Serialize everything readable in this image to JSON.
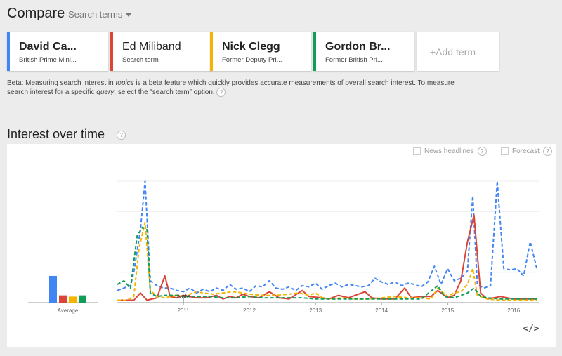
{
  "header": {
    "title": "Compare",
    "search_terms_label": "Search terms"
  },
  "terms": [
    {
      "title": "David Ca...",
      "subtitle": "British Prime Mini...",
      "color": "#4285f4",
      "bold": true
    },
    {
      "title": "Ed Miliband",
      "subtitle": "Search term",
      "color": "#db4437",
      "bold": false
    },
    {
      "title": "Nick Clegg",
      "subtitle": "Former Deputy Pri...",
      "color": "#f4b400",
      "bold": true
    },
    {
      "title": "Gordon Br...",
      "subtitle": "Former British Pri...",
      "color": "#0f9d58",
      "bold": true
    }
  ],
  "add_term_label": "+Add term",
  "beta": {
    "p1": "Beta: Measuring search interest in ",
    "em1": "topics",
    "p2": " is a beta feature which quickly provides accurate measurements of overall search interest. To measure search interest for a specific ",
    "em2": "query",
    "p3": ", select the “search term” option.",
    "help": "?"
  },
  "section_title": "Interest over time",
  "help_mark": "?",
  "options": {
    "news_headlines": "News headlines",
    "forecast": "Forecast"
  },
  "embed_label": "</>",
  "chart_data": {
    "type": "line",
    "average": {
      "label": "Average",
      "values": [
        {
          "name": "David Ca...",
          "value": 22,
          "color": "#4285f4"
        },
        {
          "name": "Ed Miliband",
          "value": 6,
          "color": "#db4437"
        },
        {
          "name": "Nick Clegg",
          "value": 5,
          "color": "#f4b400"
        },
        {
          "name": "Gordon Br...",
          "value": 6,
          "color": "#0f9d58"
        }
      ]
    },
    "x_ticks": [
      "2011",
      "2012",
      "2013",
      "2014",
      "2015",
      "2016"
    ],
    "x_range": [
      2010.0,
      2016.38
    ],
    "ylim": [
      0,
      100
    ],
    "note_label": "Note",
    "note_x": 2011.0,
    "series": [
      {
        "name": "David Ca...",
        "color": "#4285f4",
        "dash": "5,3",
        "points": [
          [
            2010.0,
            10
          ],
          [
            2010.1,
            12
          ],
          [
            2010.2,
            14
          ],
          [
            2010.25,
            25
          ],
          [
            2010.35,
            60
          ],
          [
            2010.42,
            100
          ],
          [
            2010.5,
            18
          ],
          [
            2010.6,
            14
          ],
          [
            2010.7,
            12
          ],
          [
            2010.8,
            12
          ],
          [
            2010.9,
            10
          ],
          [
            2011.0,
            9
          ],
          [
            2011.1,
            12
          ],
          [
            2011.2,
            8
          ],
          [
            2011.3,
            11
          ],
          [
            2011.4,
            9
          ],
          [
            2011.5,
            12
          ],
          [
            2011.6,
            10
          ],
          [
            2011.7,
            15
          ],
          [
            2011.8,
            11
          ],
          [
            2011.9,
            12
          ],
          [
            2012.0,
            9
          ],
          [
            2012.1,
            14
          ],
          [
            2012.2,
            13
          ],
          [
            2012.3,
            18
          ],
          [
            2012.4,
            12
          ],
          [
            2012.5,
            11
          ],
          [
            2012.6,
            13
          ],
          [
            2012.7,
            10
          ],
          [
            2012.8,
            14
          ],
          [
            2012.9,
            13
          ],
          [
            2013.0,
            16
          ],
          [
            2013.1,
            11
          ],
          [
            2013.2,
            14
          ],
          [
            2013.3,
            16
          ],
          [
            2013.4,
            13
          ],
          [
            2013.5,
            15
          ],
          [
            2013.6,
            14
          ],
          [
            2013.7,
            13
          ],
          [
            2013.8,
            14
          ],
          [
            2013.9,
            20
          ],
          [
            2014.0,
            17
          ],
          [
            2014.1,
            15
          ],
          [
            2014.2,
            17
          ],
          [
            2014.3,
            14
          ],
          [
            2014.4,
            16
          ],
          [
            2014.5,
            15
          ],
          [
            2014.6,
            13
          ],
          [
            2014.7,
            17
          ],
          [
            2014.8,
            30
          ],
          [
            2014.9,
            15
          ],
          [
            2015.0,
            28
          ],
          [
            2015.1,
            18
          ],
          [
            2015.2,
            20
          ],
          [
            2015.3,
            26
          ],
          [
            2015.38,
            88
          ],
          [
            2015.45,
            15
          ],
          [
            2015.55,
            12
          ],
          [
            2015.65,
            14
          ],
          [
            2015.75,
            100
          ],
          [
            2015.85,
            28
          ],
          [
            2015.95,
            27
          ],
          [
            2016.05,
            28
          ],
          [
            2016.15,
            22
          ],
          [
            2016.25,
            50
          ],
          [
            2016.35,
            28
          ]
        ]
      },
      {
        "name": "Ed Miliband",
        "color": "#db4437",
        "dash": "",
        "points": [
          [
            2010.0,
            2
          ],
          [
            2010.15,
            2
          ],
          [
            2010.25,
            2
          ],
          [
            2010.35,
            8
          ],
          [
            2010.45,
            2
          ],
          [
            2010.6,
            4
          ],
          [
            2010.72,
            22
          ],
          [
            2010.8,
            5
          ],
          [
            2010.9,
            4
          ],
          [
            2011.0,
            6
          ],
          [
            2011.2,
            4
          ],
          [
            2011.35,
            4
          ],
          [
            2011.5,
            6
          ],
          [
            2011.6,
            3
          ],
          [
            2011.7,
            5
          ],
          [
            2011.8,
            4
          ],
          [
            2011.9,
            7
          ],
          [
            2012.0,
            5
          ],
          [
            2012.15,
            4
          ],
          [
            2012.3,
            9
          ],
          [
            2012.45,
            4
          ],
          [
            2012.6,
            3
          ],
          [
            2012.8,
            10
          ],
          [
            2012.9,
            5
          ],
          [
            2013.1,
            4
          ],
          [
            2013.2,
            3
          ],
          [
            2013.35,
            6
          ],
          [
            2013.5,
            4
          ],
          [
            2013.6,
            6
          ],
          [
            2013.75,
            9
          ],
          [
            2013.85,
            4
          ],
          [
            2014.0,
            3
          ],
          [
            2014.2,
            3
          ],
          [
            2014.35,
            12
          ],
          [
            2014.45,
            4
          ],
          [
            2014.6,
            5
          ],
          [
            2014.75,
            5
          ],
          [
            2014.85,
            10
          ],
          [
            2015.0,
            4
          ],
          [
            2015.1,
            6
          ],
          [
            2015.2,
            18
          ],
          [
            2015.3,
            50
          ],
          [
            2015.4,
            72
          ],
          [
            2015.5,
            8
          ],
          [
            2015.6,
            3
          ],
          [
            2015.8,
            5
          ],
          [
            2016.0,
            3
          ],
          [
            2016.2,
            3
          ],
          [
            2016.35,
            3
          ]
        ]
      },
      {
        "name": "Nick Clegg",
        "color": "#f4b400",
        "dash": "5,3",
        "points": [
          [
            2010.0,
            2
          ],
          [
            2010.15,
            2
          ],
          [
            2010.25,
            5
          ],
          [
            2010.33,
            45
          ],
          [
            2010.42,
            66
          ],
          [
            2010.5,
            10
          ],
          [
            2010.6,
            5
          ],
          [
            2010.72,
            4
          ],
          [
            2010.8,
            5
          ],
          [
            2010.9,
            6
          ],
          [
            2011.0,
            5
          ],
          [
            2011.2,
            9
          ],
          [
            2011.3,
            8
          ],
          [
            2011.45,
            7
          ],
          [
            2011.6,
            8
          ],
          [
            2011.75,
            9
          ],
          [
            2011.9,
            8
          ],
          [
            2012.0,
            7
          ],
          [
            2012.2,
            6
          ],
          [
            2012.4,
            6
          ],
          [
            2012.6,
            7
          ],
          [
            2012.75,
            8
          ],
          [
            2012.9,
            6
          ],
          [
            2013.0,
            8
          ],
          [
            2013.1,
            4
          ],
          [
            2013.25,
            3
          ],
          [
            2013.4,
            4
          ],
          [
            2013.6,
            3
          ],
          [
            2013.8,
            3
          ],
          [
            2014.0,
            4
          ],
          [
            2014.2,
            5
          ],
          [
            2014.4,
            4
          ],
          [
            2014.6,
            4
          ],
          [
            2014.75,
            3
          ],
          [
            2014.85,
            12
          ],
          [
            2015.0,
            5
          ],
          [
            2015.1,
            8
          ],
          [
            2015.2,
            9
          ],
          [
            2015.3,
            15
          ],
          [
            2015.38,
            28
          ],
          [
            2015.45,
            6
          ],
          [
            2015.6,
            3
          ],
          [
            2015.8,
            2
          ],
          [
            2016.0,
            2
          ],
          [
            2016.2,
            2
          ],
          [
            2016.35,
            2
          ]
        ]
      },
      {
        "name": "Gordon Br...",
        "color": "#0f9d58",
        "dash": "5,3",
        "points": [
          [
            2010.0,
            15
          ],
          [
            2010.1,
            18
          ],
          [
            2010.2,
            12
          ],
          [
            2010.3,
            55
          ],
          [
            2010.38,
            62
          ],
          [
            2010.45,
            60
          ],
          [
            2010.5,
            8
          ],
          [
            2010.6,
            5
          ],
          [
            2010.72,
            6
          ],
          [
            2010.9,
            6
          ],
          [
            2011.0,
            5
          ],
          [
            2011.2,
            5
          ],
          [
            2011.4,
            5
          ],
          [
            2011.6,
            4
          ],
          [
            2011.8,
            4
          ],
          [
            2012.0,
            5
          ],
          [
            2012.2,
            4
          ],
          [
            2012.4,
            4
          ],
          [
            2012.6,
            4
          ],
          [
            2012.8,
            4
          ],
          [
            2013.0,
            3
          ],
          [
            2013.2,
            3
          ],
          [
            2013.4,
            3
          ],
          [
            2013.6,
            3
          ],
          [
            2013.8,
            3
          ],
          [
            2014.0,
            3
          ],
          [
            2014.2,
            3
          ],
          [
            2014.4,
            3
          ],
          [
            2014.6,
            3
          ],
          [
            2014.85,
            14
          ],
          [
            2014.95,
            5
          ],
          [
            2015.1,
            4
          ],
          [
            2015.3,
            8
          ],
          [
            2015.4,
            12
          ],
          [
            2015.5,
            5
          ],
          [
            2015.6,
            4
          ],
          [
            2015.8,
            3
          ],
          [
            2016.0,
            3
          ],
          [
            2016.2,
            3
          ],
          [
            2016.35,
            3
          ]
        ]
      }
    ]
  }
}
